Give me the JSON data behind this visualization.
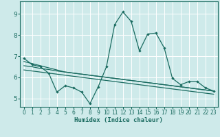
{
  "xlabel": "Humidex (Indice chaleur)",
  "xlim": [
    -0.5,
    23.5
  ],
  "ylim": [
    4.6,
    9.6
  ],
  "yticks": [
    5,
    6,
    7,
    8,
    9
  ],
  "xticks": [
    0,
    1,
    2,
    3,
    4,
    5,
    6,
    7,
    8,
    9,
    10,
    11,
    12,
    13,
    14,
    15,
    16,
    17,
    18,
    19,
    20,
    21,
    22,
    23
  ],
  "bg_color": "#ceeaea",
  "line_color": "#1a6b60",
  "grid_color": "#ffffff",
  "series1_x": [
    0,
    1,
    2,
    3,
    4,
    5,
    6,
    7,
    8,
    9,
    10,
    11,
    12,
    13,
    14,
    15,
    16,
    17,
    18,
    19,
    20,
    21,
    22,
    23
  ],
  "series1_y": [
    6.9,
    6.6,
    6.5,
    6.2,
    5.3,
    5.6,
    5.5,
    5.3,
    4.75,
    5.55,
    6.5,
    8.5,
    9.1,
    8.65,
    7.25,
    8.05,
    8.1,
    7.4,
    5.95,
    5.65,
    5.8,
    5.8,
    5.5,
    5.35
  ],
  "series2_x": [
    0,
    1,
    2,
    3,
    4,
    5,
    6,
    7,
    8,
    9,
    10,
    11,
    12,
    13,
    14,
    15,
    16,
    17,
    18,
    19,
    20,
    21,
    22,
    23
  ],
  "series2_y": [
    6.75,
    6.65,
    6.55,
    6.45,
    6.35,
    6.25,
    6.2,
    6.15,
    6.1,
    6.05,
    6.0,
    5.95,
    5.9,
    5.85,
    5.8,
    5.75,
    5.7,
    5.65,
    5.6,
    5.55,
    5.5,
    5.45,
    5.4,
    5.35
  ],
  "series3_x": [
    0,
    1,
    2,
    3,
    4,
    5,
    6,
    7,
    8,
    9,
    10,
    11,
    12,
    13,
    14,
    15,
    16,
    17,
    18,
    19,
    20,
    21,
    22,
    23
  ],
  "series3_y": [
    6.55,
    6.5,
    6.42,
    6.37,
    6.3,
    6.25,
    6.2,
    6.15,
    6.1,
    6.05,
    6.0,
    5.95,
    5.9,
    5.85,
    5.8,
    5.75,
    5.7,
    5.65,
    5.6,
    5.55,
    5.5,
    5.45,
    5.4,
    5.35
  ],
  "series4_x": [
    0,
    1,
    2,
    3,
    4,
    5,
    6,
    7,
    8,
    9,
    10,
    11,
    12,
    13,
    14,
    15,
    16,
    17,
    18,
    19,
    20,
    21,
    22,
    23
  ],
  "series4_y": [
    6.35,
    6.3,
    6.25,
    6.2,
    6.15,
    6.1,
    6.05,
    6.0,
    5.95,
    5.9,
    5.85,
    5.8,
    5.75,
    5.7,
    5.65,
    5.6,
    5.55,
    5.5,
    5.45,
    5.4,
    5.35,
    5.3,
    5.25,
    5.2
  ]
}
